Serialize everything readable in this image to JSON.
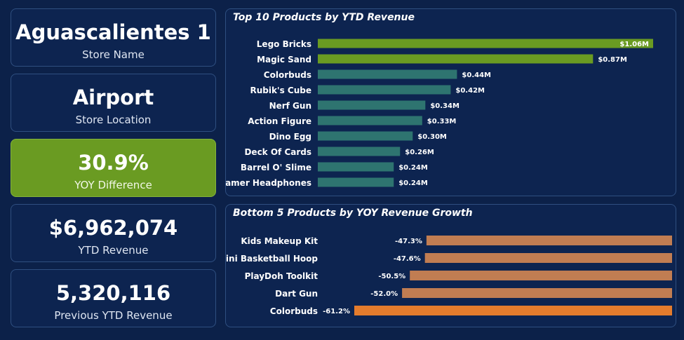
{
  "kpis": [
    {
      "value": "Aguascalientes 1",
      "label": "Store Name"
    },
    {
      "value": "Airport",
      "label": "Store Location"
    },
    {
      "value": "30.9%",
      "label": "YOY Difference"
    },
    {
      "value": "$6,962,074",
      "label": "YTD Revenue"
    },
    {
      "value": "5,320,116",
      "label": "Previous YTD Revenue"
    }
  ],
  "colors": {
    "background": "#0c2149",
    "card": "#0d2450",
    "card_border": "#2f4f80",
    "highlight": "#6a9b22",
    "top_bar_green": "#6a9b22",
    "top_bar_teal": "#2e7470",
    "bottom_bar": "#c17d52",
    "bottom_bar_highlight": "#e47c2d"
  },
  "chart_data": [
    {
      "type": "bar",
      "orientation": "horizontal",
      "title": "Top 10 Products by YTD Revenue",
      "categories": [
        "Lego Bricks",
        "Magic Sand",
        "Colorbuds",
        "Rubik's Cube",
        "Nerf Gun",
        "Action Figure",
        "Dino Egg",
        "Deck Of Cards",
        "Barrel O' Slime",
        "Gamer Headphones"
      ],
      "values": [
        1.06,
        0.87,
        0.44,
        0.42,
        0.34,
        0.33,
        0.3,
        0.26,
        0.24,
        0.24
      ],
      "value_labels": [
        "$1.06M",
        "$0.87M",
        "$0.44M",
        "$0.42M",
        "$0.34M",
        "$0.33M",
        "$0.30M",
        "$0.26M",
        "$0.24M",
        "$0.24M"
      ],
      "unit": "$M",
      "bar_colors": [
        "#6a9b22",
        "#6a9b22",
        "#2e7470",
        "#2e7470",
        "#2e7470",
        "#2e7470",
        "#2e7470",
        "#2e7470",
        "#2e7470",
        "#2e7470"
      ],
      "xlim": [
        0,
        1.06
      ],
      "grid": false,
      "legend": "none"
    },
    {
      "type": "bar",
      "orientation": "horizontal",
      "title": "Bottom 5 Products by YOY Revenue Growth",
      "categories": [
        "Kids Makeup Kit",
        "Mini Basketball Hoop",
        "PlayDoh Toolkit",
        "Dart Gun",
        "Colorbuds"
      ],
      "values": [
        -47.3,
        -47.6,
        -50.5,
        -52.0,
        -61.2
      ],
      "value_labels": [
        "-47.3%",
        "-47.6%",
        "-50.5%",
        "-52.0%",
        "-61.2%"
      ],
      "unit": "%",
      "bar_colors": [
        "#c17d52",
        "#c17d52",
        "#c17d52",
        "#c17d52",
        "#e47c2d"
      ],
      "xlim": [
        -61.2,
        0
      ],
      "grid": false,
      "legend": "none"
    }
  ]
}
